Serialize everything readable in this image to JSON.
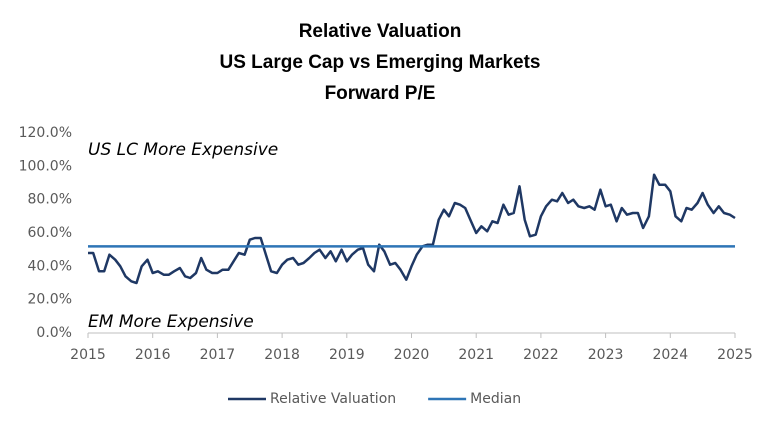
{
  "chart_data": {
    "type": "line",
    "title": [
      "Relative Valuation",
      "US Large Cap vs Emerging Markets",
      "Forward P/E"
    ],
    "annotations": [
      "US LC More Expensive",
      "EM More Expensive"
    ],
    "x": [
      2015,
      2015.08,
      2015.17,
      2015.25,
      2015.33,
      2015.42,
      2015.5,
      2015.58,
      2015.67,
      2015.75,
      2015.83,
      2015.92,
      2016,
      2016.08,
      2016.17,
      2016.25,
      2016.33,
      2016.42,
      2016.5,
      2016.58,
      2016.67,
      2016.75,
      2016.83,
      2016.92,
      2017,
      2017.08,
      2017.17,
      2017.25,
      2017.33,
      2017.42,
      2017.5,
      2017.58,
      2017.67,
      2017.75,
      2017.83,
      2017.92,
      2018,
      2018.08,
      2018.17,
      2018.25,
      2018.33,
      2018.42,
      2018.5,
      2018.58,
      2018.67,
      2018.75,
      2018.83,
      2018.92,
      2019,
      2019.08,
      2019.17,
      2019.25,
      2019.33,
      2019.42,
      2019.5,
      2019.58,
      2019.67,
      2019.75,
      2019.83,
      2019.92,
      2020,
      2020.08,
      2020.17,
      2020.25,
      2020.33,
      2020.42,
      2020.5,
      2020.58,
      2020.67,
      2020.75,
      2020.83,
      2020.92,
      2021,
      2021.08,
      2021.17,
      2021.25,
      2021.33,
      2021.42,
      2021.5,
      2021.58,
      2021.67,
      2021.75,
      2021.83,
      2021.92,
      2022,
      2022.08,
      2022.17,
      2022.25,
      2022.33,
      2022.42,
      2022.5,
      2022.58,
      2022.67,
      2022.75,
      2022.83,
      2022.92,
      2023,
      2023.08,
      2023.17,
      2023.25,
      2023.33,
      2023.42,
      2023.5,
      2023.58,
      2023.67,
      2023.75,
      2023.83,
      2023.92,
      2024,
      2024.08,
      2024.17,
      2024.25,
      2024.33,
      2024.42,
      2024.5,
      2024.58,
      2024.67,
      2024.75,
      2024.83,
      2024.92,
      2025
    ],
    "series": [
      {
        "name": "Relative Valuation",
        "color": "#1f3864",
        "values": [
          48,
          48,
          37,
          37,
          47,
          44,
          40,
          34,
          31,
          30,
          40,
          44,
          36,
          37,
          35,
          35,
          37,
          39,
          34,
          33,
          36,
          45,
          38,
          36,
          36,
          38,
          38,
          43,
          48,
          47,
          56,
          57,
          57,
          47,
          37,
          36,
          41,
          44,
          45,
          41,
          42,
          45,
          48,
          50,
          45,
          49,
          43,
          50,
          43,
          47,
          50,
          51,
          41,
          37,
          53,
          49,
          41,
          42,
          38,
          32,
          40,
          47,
          52,
          53,
          53,
          68,
          74,
          70,
          78,
          77,
          75,
          67,
          60,
          64,
          61,
          67,
          66,
          77,
          71,
          72,
          88,
          68,
          58,
          59,
          70,
          76,
          80,
          79,
          84,
          78,
          80,
          76,
          75,
          76,
          74,
          86,
          76,
          77,
          67,
          75,
          71,
          72,
          72,
          63,
          70,
          95,
          89,
          89,
          85,
          70,
          67,
          75,
          74,
          78,
          84,
          77,
          72,
          76,
          72,
          71,
          69
        ]
      }
    ],
    "median": {
      "name": "Median",
      "color": "#2e75b6",
      "value": 52
    },
    "xlim": [
      2015,
      2025
    ],
    "xticks": [
      2015,
      2016,
      2017,
      2018,
      2019,
      2020,
      2021,
      2022,
      2023,
      2024,
      2025
    ],
    "ylim": [
      0,
      120
    ],
    "yticks": [
      {
        "value": 0,
        "label": "0.0%"
      },
      {
        "value": 20,
        "label": "20.0%"
      },
      {
        "value": 40,
        "label": "40.0%"
      },
      {
        "value": 60,
        "label": "60.0%"
      },
      {
        "value": 80,
        "label": "80.0%"
      },
      {
        "value": 100,
        "label": "100.0%"
      },
      {
        "value": 120,
        "label": "120.0%"
      }
    ],
    "grid": false,
    "legend": "bottom"
  }
}
